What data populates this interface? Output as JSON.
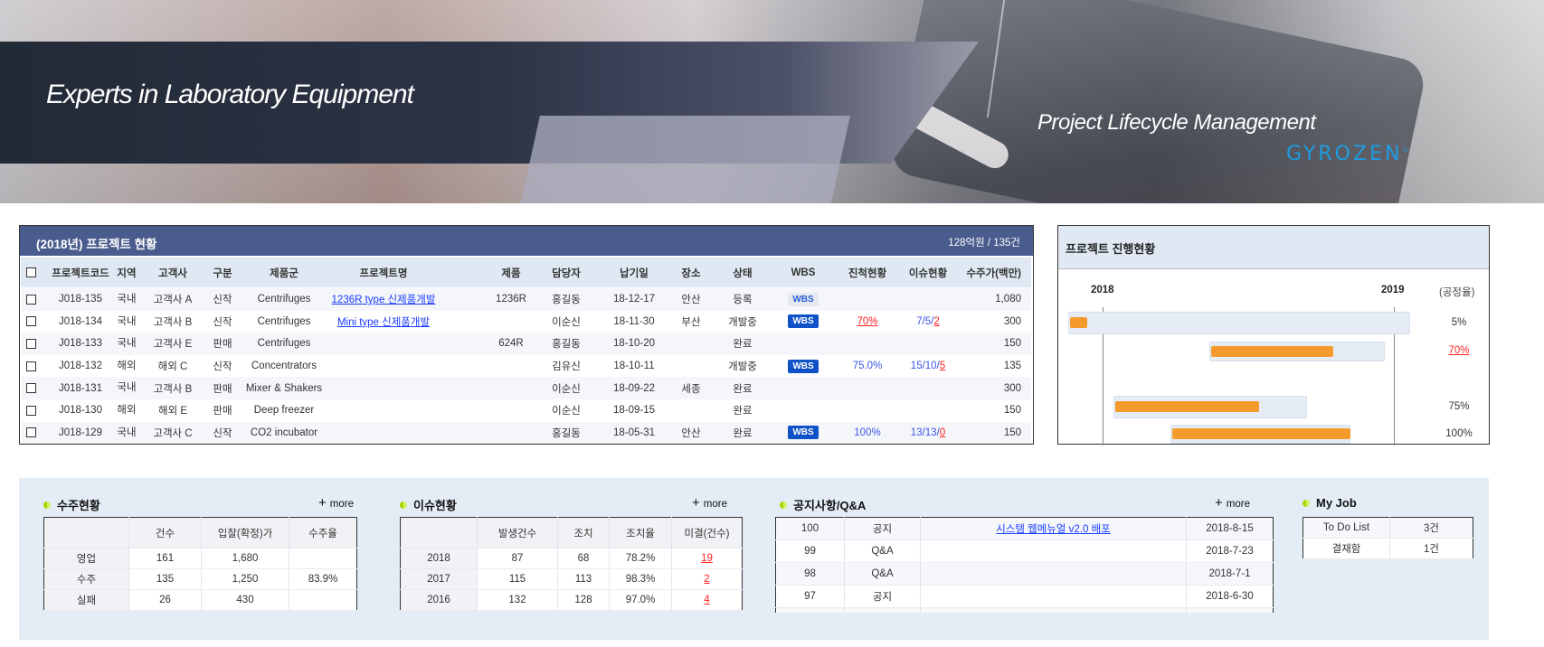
{
  "banner": {
    "slogan": "Experts in Laboratory Equipment",
    "system_name": "Project Lifecycle Management",
    "logo_text": "GYROZEN"
  },
  "projects": {
    "title": "(2018년) 프로젝트 현황",
    "summary": "128억원 / 135건",
    "columns": [
      "프로젝트코드",
      "지역",
      "고객사",
      "구분",
      "제품군",
      "프로젝트명",
      "제품",
      "담당자",
      "납기일",
      "장소",
      "상태",
      "WBS",
      "진척현황",
      "이슈현황",
      "수주가(백만)"
    ],
    "rows": [
      {
        "code": "J018-135",
        "region": "국내",
        "customer": "고객사 A",
        "type": "신작",
        "group": "Centrifuges",
        "name": "1236R type 신제품개발",
        "product": "1236R",
        "manager": "홍길동",
        "due": "18-12-17",
        "place": "안산",
        "status": "등록",
        "wbs": "WBS",
        "wbs_active": false,
        "progress": "",
        "issue_a": "",
        "issue_b": "",
        "price": "1,080"
      },
      {
        "code": "J018-134",
        "region": "국내",
        "customer": "고객사 B",
        "type": "신작",
        "group": "Centrifuges",
        "name": "Mini type 신제품개발",
        "product": "",
        "manager": "이순신",
        "due": "18-11-30",
        "place": "부산",
        "status": "개발중",
        "wbs": "WBS",
        "wbs_active": true,
        "progress": "70%",
        "progress_alert": true,
        "issue_a": "7/5/",
        "issue_b": "2",
        "price": "300"
      },
      {
        "code": "J018-133",
        "region": "국내",
        "customer": "고객사 E",
        "type": "판매",
        "group": "Centrifuges",
        "name": "",
        "product": "624R",
        "manager": "홍길동",
        "due": "18-10-20",
        "place": "",
        "status": "완료",
        "wbs": "",
        "progress": "",
        "issue_a": "",
        "issue_b": "",
        "price": "150"
      },
      {
        "code": "J018-132",
        "region": "해외",
        "customer": "해외 C",
        "type": "신작",
        "group": "Concentrators",
        "name": "",
        "product": "",
        "manager": "김유신",
        "due": "18-10-11",
        "place": "",
        "status": "개발중",
        "wbs": "WBS",
        "wbs_active": true,
        "progress": "75.0%",
        "issue_a": "15/10/",
        "issue_b": "5",
        "price": "135"
      },
      {
        "code": "J018-131",
        "region": "국내",
        "customer": "고객사 B",
        "type": "판매",
        "group": "Mixer & Shakers",
        "name": "",
        "product": "",
        "manager": "이순신",
        "due": "18-09-22",
        "place": "세종",
        "status": "완료",
        "wbs": "",
        "progress": "",
        "issue_a": "",
        "issue_b": "",
        "price": "300"
      },
      {
        "code": "J018-130",
        "region": "해외",
        "customer": "해외 E",
        "type": "판매",
        "group": "Deep freezer",
        "name": "",
        "product": "",
        "manager": "이순신",
        "due": "18-09-15",
        "place": "",
        "status": "완료",
        "wbs": "",
        "progress": "",
        "issue_a": "",
        "issue_b": "",
        "price": "150"
      },
      {
        "code": "J018-129",
        "region": "국내",
        "customer": "고객사 C",
        "type": "신작",
        "group": "CO2 incubator",
        "name": "",
        "product": "",
        "manager": "홍길동",
        "due": "18-05-31",
        "place": "안산",
        "status": "완료",
        "wbs": "WBS",
        "wbs_active": true,
        "progress": "100%",
        "issue_a": "13/13/",
        "issue_b": "0",
        "price": "150"
      }
    ]
  },
  "gantt": {
    "title": "프로젝트 진행현황",
    "axis_start_label": "2018",
    "axis_end_label": "2019",
    "rate_label": "(공정율)",
    "colors": {
      "track": "#e5ecf5",
      "fill": "#f59a2c",
      "alert": "#ff2020"
    },
    "bars": [
      {
        "start": "2017-11-19",
        "end": "2019-01-21",
        "progress": 5,
        "label": "5%",
        "alert": false
      },
      {
        "start": "2018-05-15",
        "end": "2018-12-21",
        "progress": 70,
        "label": "70%",
        "alert": true
      },
      {
        "start": "2018-01-15",
        "end": "2018-09-14",
        "progress": 75,
        "label": "75%",
        "alert": false
      },
      {
        "start": "2018-03-27",
        "end": "2018-11-08",
        "progress": 100,
        "label": "100%",
        "alert": false
      }
    ]
  },
  "orders": {
    "title": "수주현황",
    "more": "more",
    "columns": [
      "",
      "건수",
      "입찰(확정)가",
      "수주율"
    ],
    "rows": [
      [
        "영업",
        "161",
        "1,680",
        ""
      ],
      [
        "수주",
        "135",
        "1,250",
        "83.9%"
      ],
      [
        "실패",
        "26",
        "430",
        ""
      ]
    ]
  },
  "issues": {
    "title": "이슈현황",
    "more": "more",
    "columns": [
      "",
      "발생건수",
      "조치",
      "조치율",
      "미결(건수)"
    ],
    "rows": [
      [
        "2018",
        "87",
        "68",
        "78.2%",
        "19"
      ],
      [
        "2017",
        "115",
        "113",
        "98.3%",
        "2"
      ],
      [
        "2016",
        "132",
        "128",
        "97.0%",
        "4"
      ]
    ]
  },
  "notices": {
    "title": "공지사항/Q&A",
    "more": "more",
    "rows": [
      [
        "100",
        "공지",
        "시스템 웹메뉴얼 v2.0 배포",
        "2018-8-15"
      ],
      [
        "99",
        "Q&A",
        "",
        "2018-7-23"
      ],
      [
        "98",
        "Q&A",
        "",
        "2018-7-1"
      ],
      [
        "97",
        "공지",
        "",
        "2018-6-30"
      ]
    ]
  },
  "myjob": {
    "title": "My Job",
    "rows": [
      [
        "To Do List",
        "3건"
      ],
      [
        "결재함",
        "1건"
      ]
    ]
  }
}
